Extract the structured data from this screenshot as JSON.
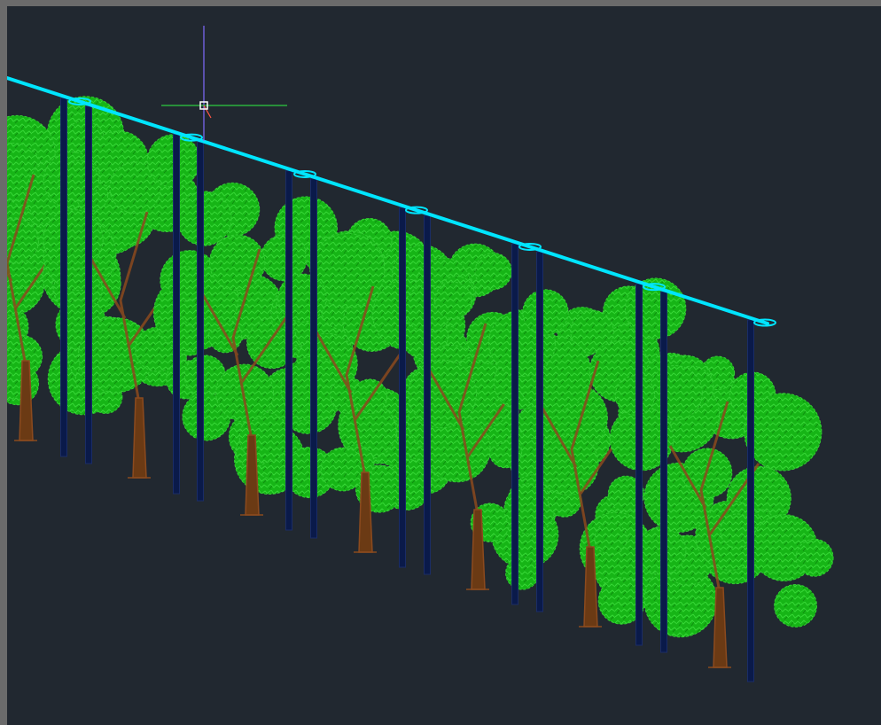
{
  "app": {
    "title": ""
  },
  "viewport": {
    "background": "#212830",
    "frame_color": "#6b6b6b"
  },
  "scene": {
    "description_visible_text": "",
    "colors": {
      "rail": "#00e5ff",
      "post": "#0a1a4a",
      "foliage_light": "#33cc33",
      "foliage_mid": "#16b516",
      "foliage_dark": "#0d8f0d",
      "trunk": "#8b4a1e",
      "crosshair_x": "#2ecc40",
      "crosshair_y": "#7f6cff",
      "crosshair_box": "#ffffff"
    },
    "post_pair_count": 7,
    "tree_count": 7
  },
  "icons": {
    "cursor": "crosshair-cursor-icon"
  }
}
